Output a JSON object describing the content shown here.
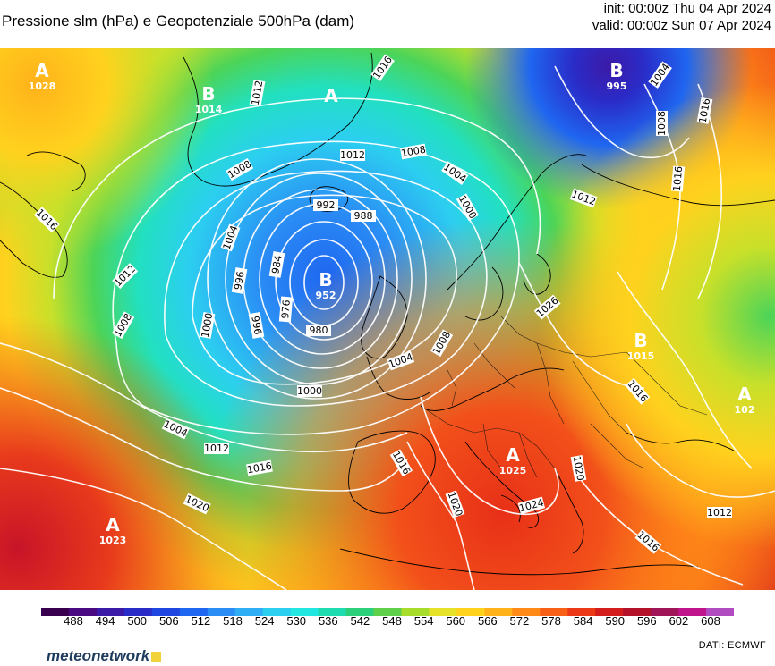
{
  "header": {
    "title": "Pressione slm (hPa) e Geopotenziale 500hPa (dam)",
    "init": "init: 00:00z Thu 04 Apr 2024",
    "valid": "valid: 00:00z Sun 07 Apr 2024"
  },
  "map": {
    "pressure_centers": [
      {
        "letter": "A",
        "value": "1028",
        "region": "Canada north-west"
      },
      {
        "letter": "B",
        "value": "1014",
        "region": "Greenland west"
      },
      {
        "letter": "A",
        "value": "",
        "region": "Greenland"
      },
      {
        "letter": "B",
        "value": "995",
        "region": "Barents Sea"
      },
      {
        "letter": "B",
        "value": "952",
        "region": "West of Ireland"
      },
      {
        "letter": "B",
        "value": "1015",
        "region": "Ukraine"
      },
      {
        "letter": "A",
        "value": "102",
        "region": "Caspian edge"
      },
      {
        "letter": "A",
        "value": "1025",
        "region": "Italy"
      },
      {
        "letter": "A",
        "value": "1023",
        "region": "Azores"
      }
    ],
    "isobar_labels": [
      "1016",
      "1012",
      "1016",
      "1012",
      "1008",
      "1004",
      "1012",
      "1008",
      "1004",
      "1000",
      "992",
      "988",
      "996",
      "984",
      "976",
      "952",
      "980",
      "1000",
      "1000",
      "996",
      "1004",
      "1008",
      "1004",
      "1012",
      "1016",
      "1020",
      "1016",
      "1020",
      "1024",
      "1016",
      "1020",
      "1012",
      "1008",
      "1008",
      "1004",
      "1012",
      "1016",
      "1016",
      "1026",
      "1016"
    ]
  },
  "colorbar": {
    "ticks": [
      "488",
      "494",
      "500",
      "506",
      "512",
      "518",
      "524",
      "530",
      "536",
      "542",
      "548",
      "554",
      "560",
      "566",
      "572",
      "578",
      "584",
      "590",
      "596",
      "602",
      "608"
    ],
    "colors": [
      "#3a0050",
      "#4a0a82",
      "#3c1aa8",
      "#2a2cc8",
      "#1f46e0",
      "#1f66f0",
      "#2a8cf5",
      "#30aef5",
      "#2ccff0",
      "#22e6e0",
      "#1fdcb0",
      "#2cd07a",
      "#5fd04a",
      "#a8dc2a",
      "#e6e22a",
      "#ffd21e",
      "#ffb21a",
      "#ff8a18",
      "#f86018",
      "#ec3a18",
      "#d41e1e",
      "#b4122a",
      "#a01458",
      "#c0148c",
      "#b04cc0"
    ]
  },
  "footer": {
    "source": "DATI:  ECMWF",
    "logo_text": "meteonetwork"
  }
}
